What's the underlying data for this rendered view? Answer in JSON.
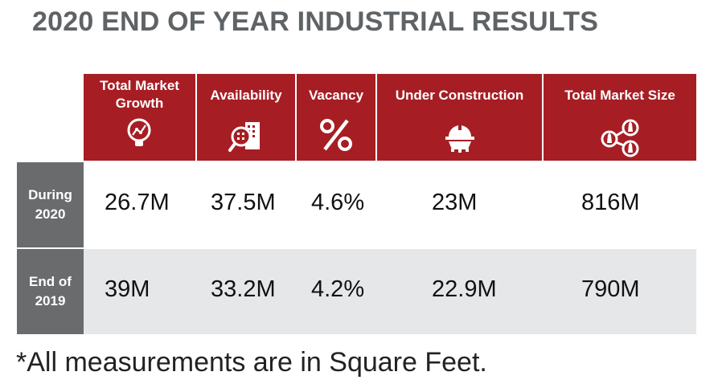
{
  "title": "2020 END OF YEAR INDUSTRIAL RESULTS",
  "columns": [
    {
      "label": "Total Market Growth",
      "icon": "magnifier-chart-icon"
    },
    {
      "label": "Availability",
      "icon": "magnifier-building-icon"
    },
    {
      "label": "Vacancy",
      "icon": "percent-icon"
    },
    {
      "label": "Under Construction",
      "icon": "hardhat-gear-icon"
    },
    {
      "label": "Total Market Size",
      "icon": "buildings-network-icon"
    }
  ],
  "rows": [
    {
      "label": "During 2020",
      "values": [
        "26.7M",
        "37.5M",
        "4.6%",
        "23M",
        "816M"
      ]
    },
    {
      "label": "End of 2019",
      "values": [
        "39M",
        "33.2M",
        "4.2%",
        "22.9M",
        "790M"
      ]
    }
  ],
  "footnote": "*All measurements are in Square Feet.",
  "colors": {
    "header": "#a61e24",
    "row_label": "#6a6b6d",
    "row_shade": "#e6e7e8",
    "title": "#5f6366"
  }
}
